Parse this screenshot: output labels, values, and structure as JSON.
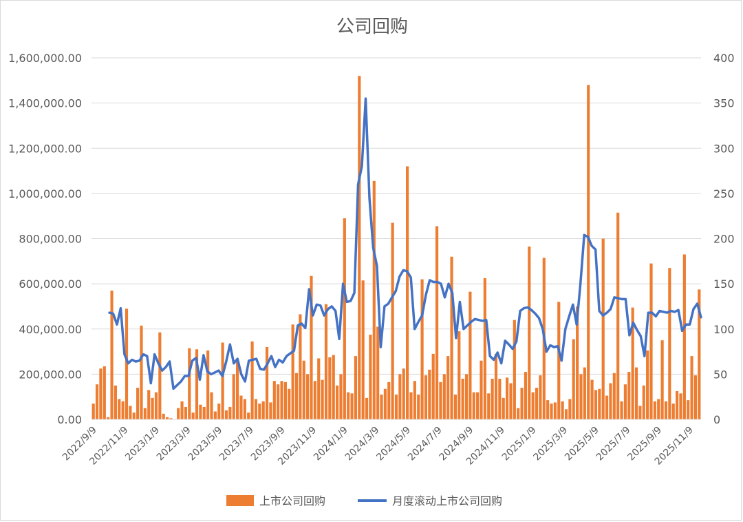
{
  "chart_data": {
    "type": "bar+line",
    "title": "公司回购",
    "colors": {
      "bar": "#ED7D31",
      "line": "#4472C4",
      "grid": "#d9d9d9",
      "text": "#595959"
    },
    "grid": true,
    "legend_position": "bottom",
    "y_left": {
      "min": 0,
      "max": 1600000,
      "ticks": [
        0,
        200000,
        400000,
        600000,
        800000,
        1000000,
        1200000,
        1400000,
        1600000
      ],
      "tick_labels": [
        "0.00",
        "200,000.00",
        "400,000.00",
        "600,000.00",
        "800,000.00",
        "1,000,000.00",
        "1,200,000.00",
        "1,400,000.00",
        "1,600,000.00"
      ]
    },
    "y_right": {
      "min": 0,
      "max": 400,
      "ticks": [
        0,
        50,
        100,
        150,
        200,
        250,
        300,
        350,
        400
      ],
      "tick_labels": [
        "0",
        "50",
        "100",
        "150",
        "200",
        "250",
        "300",
        "350",
        "400"
      ]
    },
    "x_tick_labels": [
      "2022/9/9",
      "2022/11/9",
      "2023/1/9",
      "2023/3/9",
      "2023/5/9",
      "2023/7/9",
      "2023/9/9",
      "2023/11/9",
      "2024/1/9",
      "2024/3/9",
      "2024/5/9",
      "2024/7/9",
      "2024/9/9",
      "2024/11/9",
      "2025/1/9",
      "2025/3/9",
      "2025/5/9",
      "2025/7/9",
      "2025/9/9",
      "2025/11/9"
    ],
    "series": [
      {
        "name": "上市公司回购",
        "kind": "bar",
        "axis": "left",
        "values": [
          70000,
          155000,
          225000,
          235000,
          10000,
          570000,
          150000,
          90000,
          80000,
          490000,
          60000,
          30000,
          140000,
          415000,
          50000,
          130000,
          95000,
          120000,
          385000,
          25000,
          10000,
          5000,
          0,
          50000,
          80000,
          55000,
          315000,
          30000,
          310000,
          65000,
          55000,
          305000,
          120000,
          35000,
          70000,
          340000,
          40000,
          55000,
          200000,
          255000,
          105000,
          90000,
          30000,
          345000,
          90000,
          70000,
          80000,
          320000,
          75000,
          170000,
          155000,
          170000,
          165000,
          135000,
          420000,
          205000,
          465000,
          260000,
          200000,
          635000,
          170000,
          270000,
          175000,
          510000,
          275000,
          285000,
          150000,
          200000,
          890000,
          120000,
          115000,
          280000,
          1520000,
          615000,
          95000,
          375000,
          1055000,
          410000,
          110000,
          135000,
          165000,
          870000,
          110000,
          200000,
          225000,
          1120000,
          120000,
          170000,
          110000,
          620000,
          195000,
          220000,
          290000,
          855000,
          165000,
          200000,
          280000,
          720000,
          110000,
          390000,
          180000,
          200000,
          565000,
          120000,
          120000,
          260000,
          625000,
          115000,
          180000,
          290000,
          180000,
          95000,
          185000,
          160000,
          440000,
          50000,
          140000,
          210000,
          765000,
          120000,
          140000,
          195000,
          715000,
          85000,
          70000,
          75000,
          520000,
          80000,
          45000,
          90000,
          355000,
          500000,
          200000,
          230000,
          1480000,
          175000,
          130000,
          135000,
          800000,
          105000,
          160000,
          205000,
          915000,
          80000,
          155000,
          210000,
          495000,
          230000,
          60000,
          150000,
          305000,
          690000,
          80000,
          90000,
          350000,
          80000,
          670000,
          70000,
          125000,
          115000,
          730000,
          85000,
          280000,
          195000,
          575000
        ]
      },
      {
        "name": "月度滚动上市公司回购",
        "kind": "line",
        "axis": "right",
        "values": [
          118,
          117,
          105,
          123,
          72,
          62,
          66,
          64,
          65,
          72,
          70,
          40,
          72,
          62,
          54,
          58,
          64,
          34,
          38,
          42,
          48,
          48,
          65,
          68,
          44,
          71,
          53,
          50,
          52,
          54,
          48,
          64,
          83,
          62,
          67,
          50,
          42,
          65,
          66,
          67,
          56,
          55,
          62,
          70,
          58,
          66,
          63,
          70,
          73,
          76,
          104,
          106,
          101,
          144,
          115,
          127,
          126,
          115,
          122,
          125,
          120,
          89,
          150,
          130,
          131,
          140,
          260,
          280,
          355,
          245,
          190,
          170,
          80,
          125,
          128,
          135,
          142,
          158,
          165,
          164,
          157,
          100,
          108,
          115,
          138,
          154,
          152,
          152,
          150,
          135,
          150,
          140,
          90,
          130,
          100,
          104,
          108,
          111,
          110,
          109,
          110,
          70,
          66,
          74,
          62,
          87,
          83,
          78,
          86,
          120,
          123,
          124,
          121,
          117,
          112,
          100,
          75,
          82,
          80,
          81,
          65,
          100,
          114,
          127,
          105,
          150,
          204,
          202,
          192,
          188,
          120,
          115,
          118,
          122,
          135,
          134,
          133,
          133,
          93,
          107,
          99,
          92,
          70,
          118,
          118,
          114,
          120,
          119,
          118,
          120,
          119,
          121,
          98,
          105,
          105,
          122,
          128,
          113
        ]
      }
    ]
  }
}
